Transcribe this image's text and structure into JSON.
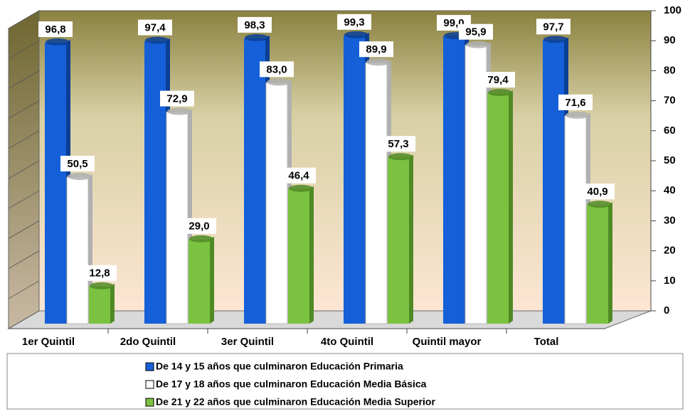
{
  "chart_data": {
    "type": "bar",
    "categories": [
      "1er Quintil",
      "2do Quintil",
      "3er Quintil",
      "4to Quintil",
      "Quintil mayor",
      "Total"
    ],
    "series": [
      {
        "name": "De 14 y 15 años que culminaron  Educación Primaria",
        "color": "#1560d8",
        "values": [
          96.8,
          97.4,
          98.3,
          99.3,
          99.0,
          97.7
        ],
        "value_labels": [
          "96,8",
          "97,4",
          "98,3",
          "99,3",
          "99,0",
          "97,7"
        ]
      },
      {
        "name": "De 17 y 18 años que culminaron Educación Media Básica",
        "color": "#ffffff",
        "values": [
          50.5,
          72.9,
          83.0,
          89.9,
          95.9,
          71.6
        ],
        "value_labels": [
          "50,5",
          "72,9",
          "83,0",
          "89,9",
          "95,9",
          "71,6"
        ]
      },
      {
        "name": "De 21 y 22 años que culminaron Educación Media Superior",
        "color": "#7cc241",
        "values": [
          12.8,
          29.0,
          46.4,
          57.3,
          79.4,
          40.9
        ],
        "value_labels": [
          "12,8",
          "29,0",
          "46,4",
          "57,3",
          "79,4",
          "40,9"
        ]
      }
    ],
    "ylim": [
      0,
      100
    ],
    "yticks": [
      0,
      10,
      20,
      30,
      40,
      50,
      60,
      70,
      80,
      90,
      100
    ],
    "grid": false
  }
}
